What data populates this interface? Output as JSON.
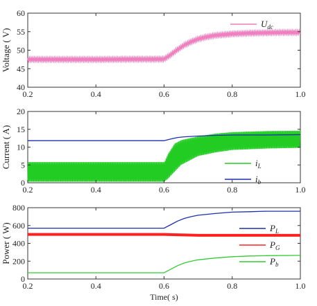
{
  "chart_data": [
    {
      "type": "line",
      "ylabel": "Voltage ( V)",
      "xlim": [
        0.2,
        1.0
      ],
      "ylim": [
        40,
        60
      ],
      "xticks": [
        "0.2",
        "0.4",
        "0.6",
        "0.8",
        "1.0"
      ],
      "yticks": [
        "40",
        "45",
        "50",
        "55",
        "60"
      ],
      "series": [
        {
          "name": "U",
          "name_sub": "dc",
          "color": "#f07fbf",
          "ripple": 0.4,
          "x": [
            0.2,
            0.4,
            0.6,
            0.62,
            0.64,
            0.66,
            0.68,
            0.7,
            0.72,
            0.75,
            0.8,
            0.85,
            0.9,
            0.95,
            1.0
          ],
          "y": [
            47.5,
            47.5,
            47.6,
            48.8,
            50.2,
            51.4,
            52.3,
            53.0,
            53.5,
            54.0,
            54.4,
            54.6,
            54.7,
            54.8,
            54.8
          ]
        }
      ]
    },
    {
      "type": "line",
      "ylabel": "Current ( A)",
      "xlim": [
        0.2,
        1.0
      ],
      "ylim": [
        0,
        20
      ],
      "xticks": [
        "0.2",
        "0.4",
        "0.6",
        "0.8",
        "1.0"
      ],
      "yticks": [
        "0",
        "5",
        "10",
        "15",
        "20"
      ],
      "series": [
        {
          "name": "i",
          "name_sub": "L",
          "color": "#22cc22",
          "band": true,
          "x": [
            0.2,
            0.6,
            0.61,
            0.63,
            0.65,
            0.7,
            0.75,
            0.8,
            0.9,
            1.0
          ],
          "ymin": [
            0.3,
            0.3,
            1.0,
            3.0,
            5.0,
            7.5,
            8.5,
            9.2,
            9.6,
            9.8
          ],
          "ymax": [
            5.8,
            5.8,
            8.0,
            11.0,
            12.0,
            13.0,
            13.8,
            14.2,
            14.5,
            14.6
          ]
        },
        {
          "name": "i",
          "name_sub": "b",
          "color": "#1b2fb0",
          "x": [
            0.2,
            0.6,
            0.62,
            0.64,
            0.66,
            0.7,
            0.75,
            0.8,
            0.9,
            1.0
          ],
          "y": [
            11.8,
            11.8,
            12.3,
            12.7,
            12.9,
            13.1,
            13.3,
            13.4,
            13.4,
            13.5
          ]
        }
      ]
    },
    {
      "type": "line",
      "ylabel": "Power ( W)",
      "xlabel": "Time( s)",
      "xlim": [
        0.2,
        1.0
      ],
      "ylim": [
        0,
        800
      ],
      "xticks": [
        "0.2",
        "0.4",
        "0.6",
        "0.8",
        "1.0"
      ],
      "yticks": [
        "0",
        "200",
        "400",
        "600",
        "800"
      ],
      "series": [
        {
          "name": "P",
          "name_sub": "L",
          "color": "#1b2fb0",
          "x": [
            0.2,
            0.6,
            0.62,
            0.64,
            0.66,
            0.68,
            0.7,
            0.75,
            0.8,
            0.85,
            0.9,
            1.0
          ],
          "y": [
            570,
            570,
            610,
            650,
            680,
            700,
            715,
            735,
            750,
            755,
            760,
            760
          ]
        },
        {
          "name": "P",
          "name_sub": "G",
          "color": "#ff2020",
          "thick": true,
          "x": [
            0.2,
            0.6,
            0.65,
            0.7,
            0.8,
            1.0
          ],
          "y": [
            500,
            500,
            495,
            490,
            490,
            490
          ]
        },
        {
          "name": "P",
          "name_sub": "b",
          "color": "#33cc33",
          "x": [
            0.2,
            0.6,
            0.62,
            0.64,
            0.66,
            0.68,
            0.7,
            0.75,
            0.8,
            0.85,
            0.9,
            1.0
          ],
          "y": [
            70,
            70,
            110,
            150,
            180,
            200,
            215,
            235,
            250,
            258,
            262,
            265
          ]
        }
      ]
    }
  ]
}
